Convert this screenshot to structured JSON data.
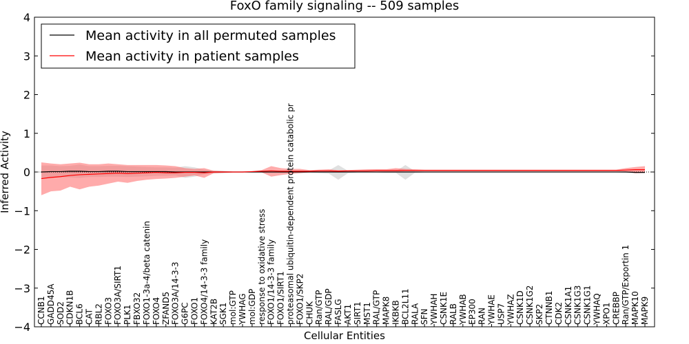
{
  "chart_data": {
    "type": "line",
    "title": "FoxO family signaling -- 509 samples",
    "xlabel": "Cellular Entities",
    "ylabel": "Inferred Activity",
    "ylim": [
      -4,
      4
    ],
    "yticks": [
      4,
      3,
      2,
      1,
      0,
      -1,
      -2,
      -3,
      -4
    ],
    "ytick_labels": [
      "4",
      "3",
      "2",
      "1",
      "0",
      "−1",
      "−2",
      "−3",
      "−4"
    ],
    "grid": false,
    "zero_line": "dotted",
    "legend_position": "top-left",
    "categories": [
      "CCNB1",
      "GADD45A",
      "SOD2",
      "CDKN1B",
      "BCL6",
      "CAT",
      "RBL2",
      "FOXO3",
      "FOXO3A/SIRT1",
      "PLK1",
      "FBXO32",
      "FOXO1-3a-4/beta catenin",
      "FOXO4",
      "ZFAND5",
      "FOXO3A/14-3-3",
      "G6PC",
      "FOXO1",
      "FOXO4/14-3-3 family",
      "KAT2B",
      "SGK1",
      "mol:GTP",
      "YWHAG",
      "mol:GDP",
      "response to oxidative stress",
      "FOXO1/14-3-3 family",
      "FOXO1/SIRT1",
      "proteasomal ubiquitin-dependent protein catabolic pr",
      "FOXO1/SKP2",
      "CHUK",
      "Ran/GTP",
      "RAL/GDP",
      "FASLG",
      "AKT1",
      "SIRT1",
      "MST1",
      "RAL/GTP",
      "MAPK8",
      "IKBKB",
      "BCL2L11",
      "RALA",
      "SFN",
      "YWHAH",
      "CSNK1E",
      "RALB",
      "YWHAB",
      "EP300",
      "RAN",
      "YWHAE",
      "USP7",
      "YWHAZ",
      "CSNK1D",
      "CSNK1G2",
      "SKP2",
      "CTNNB1",
      "CDK2",
      "CSNK1A1",
      "CSNK1G3",
      "CSNK1G1",
      "YWHAQ",
      "XPO1",
      "CREBBP",
      "Ran/GTP/Exportin 1",
      "MAPK10",
      "MAPK9"
    ],
    "series": [
      {
        "name": "Mean activity in all permuted samples",
        "color": "#000000",
        "band_color": "#bbbbbb",
        "values": [
          0.0,
          0.01,
          0.01,
          0.02,
          0.02,
          0.01,
          0.01,
          0.02,
          0.02,
          0.01,
          0.01,
          0.01,
          0.01,
          0.01,
          0.0,
          0.0,
          0.0,
          0.0,
          0.0,
          0.0,
          0.0,
          0.0,
          0.0,
          0.0,
          0.0,
          0.0,
          0.0,
          0.0,
          0.0,
          0.0,
          0.0,
          0.0,
          0.0,
          0.0,
          0.0,
          0.0,
          0.0,
          0.0,
          0.0,
          0.0,
          0.0,
          0.0,
          0.0,
          0.0,
          0.0,
          0.0,
          0.0,
          0.0,
          0.0,
          0.0,
          0.0,
          0.0,
          0.0,
          0.0,
          0.0,
          0.0,
          0.0,
          0.0,
          0.0,
          0.0,
          0.0,
          0.0,
          -0.01,
          -0.01
        ],
        "band_lower": [
          -0.17,
          -0.15,
          -0.13,
          -0.14,
          -0.15,
          -0.13,
          -0.13,
          -0.12,
          -0.12,
          -0.13,
          -0.12,
          -0.11,
          -0.1,
          -0.1,
          -0.09,
          -0.15,
          -0.12,
          -0.06,
          -0.04,
          -0.03,
          -0.01,
          -0.01,
          -0.01,
          -0.01,
          -0.01,
          -0.01,
          -0.01,
          -0.01,
          -0.01,
          -0.03,
          -0.04,
          -0.2,
          -0.03,
          -0.01,
          -0.01,
          -0.01,
          -0.02,
          -0.02,
          -0.2,
          -0.02,
          -0.01,
          -0.01,
          -0.01,
          -0.01,
          -0.01,
          -0.01,
          -0.01,
          -0.01,
          -0.01,
          -0.01,
          -0.01,
          -0.01,
          -0.01,
          -0.01,
          -0.01,
          -0.01,
          -0.01,
          -0.01,
          -0.01,
          -0.01,
          -0.01,
          -0.02,
          -0.04,
          -0.04
        ],
        "band_upper": [
          0.17,
          0.17,
          0.15,
          0.16,
          0.19,
          0.15,
          0.15,
          0.16,
          0.16,
          0.15,
          0.14,
          0.13,
          0.12,
          0.12,
          0.11,
          0.15,
          0.12,
          0.06,
          0.04,
          0.03,
          0.01,
          0.01,
          0.01,
          0.01,
          0.01,
          0.01,
          0.01,
          0.01,
          0.01,
          0.03,
          0.04,
          0.18,
          0.03,
          0.01,
          0.01,
          0.01,
          0.02,
          0.02,
          0.18,
          0.02,
          0.01,
          0.01,
          0.01,
          0.01,
          0.01,
          0.01,
          0.01,
          0.01,
          0.01,
          0.01,
          0.01,
          0.01,
          0.01,
          0.01,
          0.01,
          0.01,
          0.01,
          0.01,
          0.01,
          0.01,
          0.01,
          0.02,
          0.03,
          0.03
        ]
      },
      {
        "name": "Mean activity in patient samples",
        "color": "#ff0000",
        "band_color": "#ff6666",
        "values": [
          -0.17,
          -0.14,
          -0.12,
          -0.09,
          -0.07,
          -0.06,
          -0.05,
          -0.04,
          -0.03,
          -0.04,
          -0.03,
          -0.02,
          -0.01,
          -0.02,
          -0.02,
          -0.01,
          -0.01,
          -0.02,
          0.0,
          0.0,
          0.0,
          0.0,
          0.01,
          0.02,
          0.03,
          0.02,
          0.02,
          0.02,
          0.02,
          0.03,
          0.03,
          0.02,
          0.03,
          0.03,
          0.03,
          0.04,
          0.04,
          0.04,
          0.04,
          0.04,
          0.04,
          0.04,
          0.04,
          0.04,
          0.04,
          0.04,
          0.04,
          0.04,
          0.04,
          0.04,
          0.04,
          0.04,
          0.04,
          0.04,
          0.04,
          0.04,
          0.04,
          0.04,
          0.04,
          0.04,
          0.04,
          0.05,
          0.06,
          0.06
        ],
        "band_lower": [
          -0.6,
          -0.5,
          -0.48,
          -0.38,
          -0.45,
          -0.38,
          -0.35,
          -0.3,
          -0.25,
          -0.28,
          -0.23,
          -0.2,
          -0.18,
          -0.17,
          -0.15,
          -0.12,
          -0.09,
          -0.15,
          -0.03,
          -0.02,
          -0.01,
          -0.01,
          0.0,
          -0.01,
          -0.12,
          -0.08,
          -0.05,
          -0.03,
          -0.01,
          0.0,
          0.0,
          0.0,
          0.0,
          0.0,
          0.01,
          0.01,
          0.01,
          0.01,
          0.02,
          0.02,
          0.02,
          0.02,
          0.02,
          0.02,
          0.02,
          0.02,
          0.02,
          0.02,
          0.02,
          0.02,
          0.02,
          0.02,
          0.02,
          0.02,
          0.02,
          0.02,
          0.02,
          0.02,
          0.02,
          0.02,
          0.02,
          0.01,
          -0.03,
          -0.02
        ],
        "band_upper": [
          0.25,
          0.22,
          0.2,
          0.22,
          0.24,
          0.2,
          0.2,
          0.22,
          0.2,
          0.18,
          0.18,
          0.18,
          0.18,
          0.17,
          0.15,
          0.1,
          0.08,
          0.1,
          0.03,
          0.02,
          0.01,
          0.01,
          0.02,
          0.05,
          0.15,
          0.1,
          0.08,
          0.08,
          0.05,
          0.06,
          0.07,
          0.05,
          0.05,
          0.06,
          0.07,
          0.07,
          0.07,
          0.1,
          0.08,
          0.07,
          0.06,
          0.06,
          0.06,
          0.06,
          0.06,
          0.06,
          0.06,
          0.06,
          0.06,
          0.06,
          0.06,
          0.06,
          0.06,
          0.06,
          0.06,
          0.06,
          0.06,
          0.06,
          0.06,
          0.06,
          0.06,
          0.1,
          0.13,
          0.15
        ]
      }
    ]
  }
}
